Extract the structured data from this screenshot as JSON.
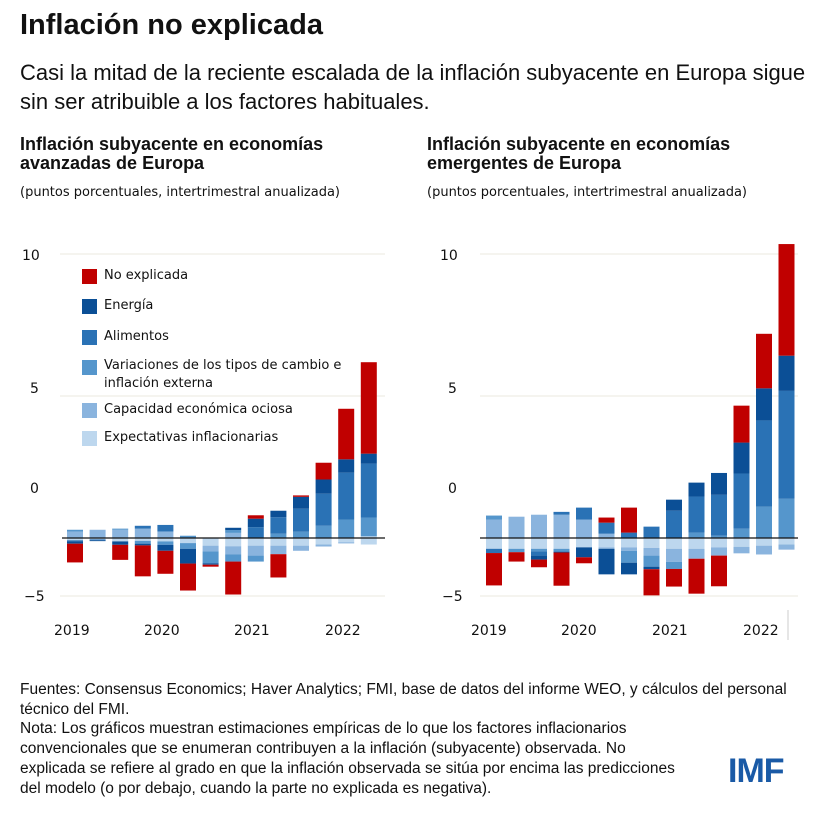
{
  "title": "Inflación no explicada",
  "subtitle": "Casi la mitad de la reciente escalada de la inflación subyacente en Europa sigue sin ser atribuible a los factores habituales.",
  "legend": [
    {
      "label": "No explicada",
      "color": "#c00000"
    },
    {
      "label": "Energía",
      "color": "#0b4f96"
    },
    {
      "label": "Alimentos",
      "color": "#2a72b5"
    },
    {
      "label": "Variaciones de los tipos de cambio e inflación externa",
      "color": "#5596cc"
    },
    {
      "label": "Capacidad económica ociosa",
      "color": "#8ab4de"
    },
    {
      "label": "Expectativas inflacionarias",
      "color": "#bdd7ee"
    }
  ],
  "chart_data": [
    {
      "type": "bar",
      "stacked": true,
      "title": "Inflación subyacente en economías avanzadas de Europa",
      "subtitle": "(puntos porcentuales, intertrimestral anualizada)",
      "ytick_labels": [
        "10",
        "5",
        "0",
        "−5"
      ],
      "xtick_labels": [
        "2019",
        "2020",
        "2021",
        "2022"
      ],
      "categories": [
        "2019T1",
        "2019T2",
        "2019T3",
        "2019T4",
        "2020T1",
        "2020T2",
        "2020T3",
        "2020T4",
        "2021T1",
        "2021T2",
        "2021T3",
        "2021T4",
        "2022T1",
        "2022T2"
      ],
      "legend_position": "top-left",
      "series": [
        {
          "name": "No explicada",
          "pos": [
            0,
            0,
            0,
            0,
            0,
            0,
            0,
            0,
            0.12,
            0,
            0.05,
            0.59,
            1.78,
            3.22
          ],
          "neg": [
            0.66,
            0,
            0.53,
            1.09,
            0.81,
            0.95,
            0.07,
            1.16,
            0,
            0.82,
            0,
            0,
            0,
            0
          ]
        },
        {
          "name": "Energía",
          "pos": [
            0,
            0,
            0,
            0,
            0,
            0,
            0,
            0.08,
            0.3,
            0.23,
            0.42,
            0.5,
            0.47,
            0.35
          ],
          "neg": [
            0.08,
            0.03,
            0.12,
            0.06,
            0.21,
            0.52,
            0.05,
            0,
            0,
            0,
            0,
            0,
            0,
            0
          ]
        },
        {
          "name": "Alimentos",
          "pos": [
            0,
            0,
            0,
            0.1,
            0.23,
            0,
            0,
            0,
            0.38,
            0.58,
            0.81,
            1.13,
            1.65,
            1.9
          ],
          "neg": [
            0.04,
            0.03,
            0,
            0,
            0,
            0,
            0,
            0,
            0,
            0,
            0,
            0,
            0,
            0
          ]
        },
        {
          "name": "Variaciones de los tipos de cambio e inflación externa",
          "pos": [
            0.06,
            0,
            0.04,
            0,
            0,
            0.08,
            0,
            0.1,
            0,
            0.15,
            0.22,
            0.43,
            0.65,
            0.66
          ],
          "neg": [
            0,
            0,
            0,
            0.1,
            0.12,
            0.2,
            0.42,
            0.25,
            0.21,
            0,
            0,
            0,
            0,
            0
          ]
        },
        {
          "name": "Capacidad económica ociosa",
          "pos": [
            0.23,
            0.29,
            0.29,
            0.33,
            0.23,
            0,
            0,
            0.18,
            0,
            0,
            0,
            0,
            0,
            0
          ],
          "neg": [
            0,
            0,
            0,
            0,
            0,
            0,
            0.2,
            0.29,
            0.35,
            0.3,
            0.18,
            0.07,
            0.04,
            0
          ]
        },
        {
          "name": "Expectativas inflacionarias",
          "pos": [
            0,
            0,
            0,
            0,
            0,
            0,
            0,
            0,
            0,
            0,
            0,
            0,
            0,
            0.06
          ],
          "neg": [
            0.08,
            0.05,
            0.12,
            0.1,
            0.12,
            0.18,
            0.27,
            0.29,
            0.27,
            0.27,
            0.27,
            0.23,
            0.15,
            0.23
          ]
        }
      ]
    },
    {
      "type": "bar",
      "stacked": true,
      "title": "Inflación subyacente en economías emergentes de Europa",
      "subtitle": "(puntos porcentuales, intertrimestral anualizada)",
      "ytick_labels": [
        "10",
        "5",
        "0",
        "−5"
      ],
      "xtick_labels": [
        "2019",
        "2020",
        "2021",
        "2022"
      ],
      "categories": [
        "2019T1",
        "2019T2",
        "2019T3",
        "2019T4",
        "2020T1",
        "2020T2",
        "2020T3",
        "2020T4",
        "2021T1",
        "2021T2",
        "2021T3",
        "2021T4",
        "2022T1",
        "2022T2"
      ],
      "series": [
        {
          "name": "No explicada",
          "pos": [
            0,
            0,
            0,
            0,
            0,
            0.18,
            0.88,
            0,
            0,
            0,
            0,
            1.3,
            1.92,
            3.93
          ],
          "neg": [
            1.14,
            0.33,
            0.27,
            1.17,
            0.21,
            0,
            0,
            0.92,
            0.62,
            1.23,
            1.08,
            0,
            0,
            0
          ]
        },
        {
          "name": "Energía",
          "pos": [
            0,
            0,
            0,
            0,
            0,
            0,
            0,
            0,
            0.39,
            0.49,
            0.77,
            1.09,
            1.13,
            1.24
          ],
          "neg": [
            0,
            0,
            0.14,
            0.03,
            0.35,
            0.9,
            0.41,
            0.09,
            0,
            0,
            0,
            0,
            0,
            0
          ]
        },
        {
          "name": "Alimentos",
          "pos": [
            0,
            0,
            0,
            0.1,
            0.42,
            0.39,
            0.19,
            0.4,
            0.96,
            1.27,
            1.44,
            1.94,
            3.04,
            3.8
          ],
          "neg": [
            0.15,
            0,
            0.15,
            0,
            0,
            0,
            0,
            0,
            0,
            0,
            0,
            0,
            0,
            0
          ]
        },
        {
          "name": "Variaciones de los tipos de cambio e inflación externa",
          "pos": [
            0.14,
            0,
            0,
            0,
            0,
            0,
            0,
            0,
            0,
            0.19,
            0.08,
            0.33,
            1.1,
            1.38
          ],
          "neg": [
            0,
            0.12,
            0.09,
            0.1,
            0,
            0,
            0.42,
            0.39,
            0.25,
            0,
            0,
            0,
            0,
            0
          ]
        },
        {
          "name": "Capacidad económica ociosa",
          "pos": [
            0.65,
            0.75,
            0.82,
            0.82,
            0.65,
            0.15,
            0,
            0,
            0,
            0,
            0,
            0,
            0,
            0
          ],
          "neg": [
            0,
            0,
            0,
            0,
            0,
            0.05,
            0.12,
            0.27,
            0.46,
            0.35,
            0.29,
            0.23,
            0.31,
            0.18
          ]
        },
        {
          "name": "Expectativas inflacionarias",
          "pos": [
            0,
            0,
            0,
            0,
            0,
            0,
            0,
            0,
            0,
            0,
            0,
            0,
            0,
            0
          ],
          "neg": [
            0.38,
            0.38,
            0.38,
            0.38,
            0.33,
            0.33,
            0.33,
            0.35,
            0.38,
            0.38,
            0.33,
            0.31,
            0.27,
            0.23
          ]
        }
      ]
    }
  ],
  "footer": {
    "sources": "Fuentes: Consensus Economics; Haver Analytics; FMI, base de datos del informe WEO, y cálculos del personal técnico del FMI.",
    "note": "Nota: Los gráficos muestran estimaciones empíricas de lo que los factores inflacionarios convencionales que se enumeran contribuyen a la inflación (subyacente) observada. No explicada se refiere al grado en que la inflación observada se sitúa por encima las predicciones del modelo (o por debajo, cuando la parte no explicada es negativa)."
  },
  "logo": "IMF"
}
